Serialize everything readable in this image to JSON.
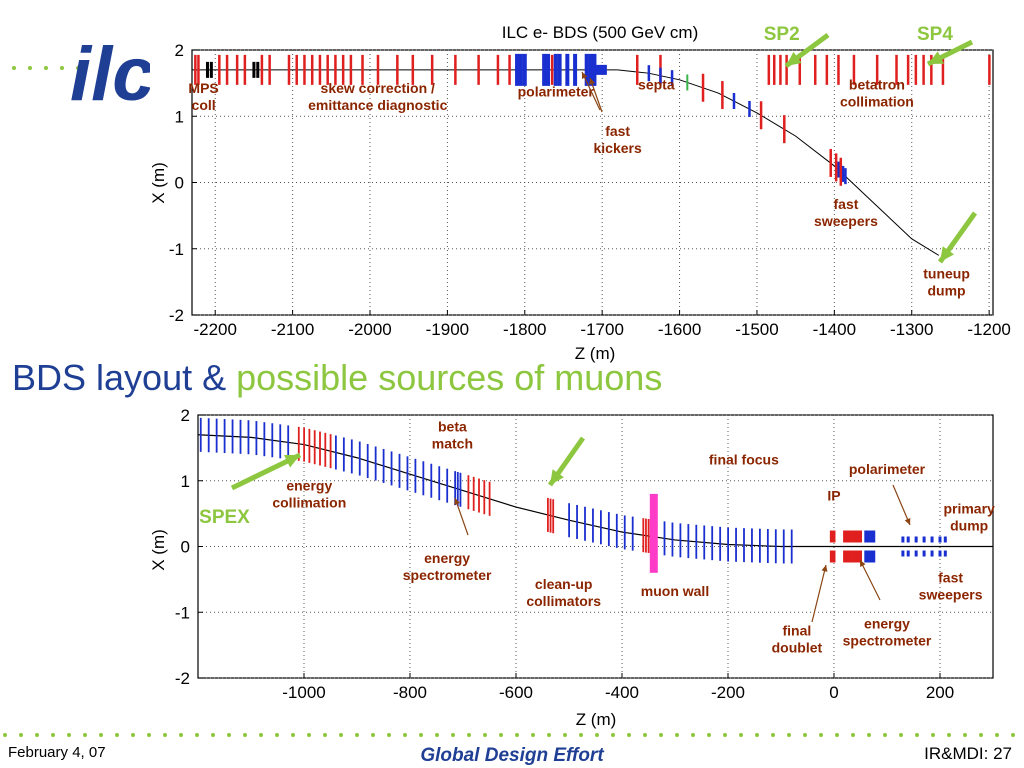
{
  "slide": {
    "logo_text": "ilc",
    "title_part1": "BDS layout & ",
    "title_part2": "possible sources of muons",
    "footer_left": "February 4, 07",
    "footer_center": "Global Design Effort",
    "footer_right": "IR&MDI: 27",
    "colors": {
      "title_blue": "#1f3f95",
      "accent_green": "#8dc63f",
      "arrow_brown": "#8b4513",
      "label_brown": "#8b2500"
    }
  },
  "chart_data": [
    {
      "type": "scatter",
      "title": "ILC e- BDS (500 GeV cm)",
      "xlabel": "Z (m)",
      "ylabel": "X (m)",
      "xlim": [
        -2230,
        -1195
      ],
      "ylim": [
        -2,
        2
      ],
      "xticks": [
        -2200,
        -2100,
        -2000,
        -1900,
        -1800,
        -1700,
        -1600,
        -1500,
        -1400,
        -1300,
        -1200
      ],
      "yticks": [
        -2,
        -1,
        0,
        1,
        2
      ],
      "grid": "dotted",
      "beamline": {
        "straight": [
          [
            -2230,
            1.7
          ],
          [
            -1680,
            1.7
          ]
        ],
        "branch": [
          [
            -1680,
            1.7
          ],
          [
            -1640,
            1.65
          ],
          [
            -1600,
            1.55
          ],
          [
            -1550,
            1.35
          ],
          [
            -1500,
            1.05
          ],
          [
            -1450,
            0.7
          ],
          [
            -1400,
            0.25
          ],
          [
            -1350,
            -0.3
          ],
          [
            -1300,
            -0.85
          ],
          [
            -1265,
            -1.1
          ]
        ]
      },
      "magnets": {
        "red_straight": [
          -2226,
          -2222,
          -2195,
          -2185,
          -2172,
          -2162,
          -2140,
          -2130,
          -2105,
          -2095,
          -2085,
          -2075,
          -2065,
          -2055,
          -2045,
          -2035,
          -2025,
          -2010,
          -1990,
          -1965,
          -1945,
          -1920,
          -1890,
          -1860,
          -1835,
          -1820,
          -1765,
          -1715,
          -1655,
          -1625,
          -1485,
          -1478,
          -1470,
          -1462,
          -1445,
          -1425,
          -1410,
          -1395,
          -1375,
          -1345,
          -1320,
          -1305,
          -1295,
          -1285,
          -1275,
          -1260,
          -1200
        ],
        "black_straight": [
          -2210,
          -2205,
          -2150,
          -2145
        ],
        "blue_straight": [
          -1810,
          -1805,
          -1800,
          -1775,
          -1770,
          -1760,
          -1755,
          -1745,
          -1735,
          -1720,
          -1715,
          -1710
        ],
        "blue_branch": [
          -1640,
          -1625,
          -1610,
          -1530,
          -1510,
          -1395,
          -1392,
          -1389,
          -1386
        ],
        "red_branch": [
          -1570,
          -1545,
          -1495,
          -1465,
          -1405,
          -1398,
          -1392
        ],
        "green_branch": [
          -1590
        ]
      },
      "annotations": [
        {
          "text": "MPS\ncoll",
          "x": -2215,
          "y": 1.2
        },
        {
          "text": "skew correction /\nemittance diagnostic",
          "x": -1990,
          "y": 1.2
        },
        {
          "text": "polarimeter",
          "x": -1760,
          "y": 1.15
        },
        {
          "text": "septa",
          "x": -1630,
          "y": 1.25
        },
        {
          "text": "fast\nkickers",
          "x": -1680,
          "y": 0.55
        },
        {
          "text": "betatron\ncollimation",
          "x": -1345,
          "y": 1.25
        },
        {
          "text": "fast\nsweepers",
          "x": -1385,
          "y": -0.55
        },
        {
          "text": "tuneup\ndump",
          "x": -1255,
          "y": -1.6
        },
        {
          "text": "SP2",
          "x": -1468,
          "y": 2.25
        },
        {
          "text": "SP4",
          "x": -1270,
          "y": 2.25
        }
      ]
    },
    {
      "type": "scatter",
      "title": "",
      "xlabel": "Z (m)",
      "ylabel": "X (m)",
      "xlim": [
        -1200,
        300
      ],
      "ylim": [
        -2,
        2
      ],
      "xticks": [
        -1000,
        -800,
        -600,
        -400,
        -200,
        0,
        200
      ],
      "yticks": [
        -2,
        -1,
        0,
        1,
        2
      ],
      "grid": "dotted",
      "beamline": [
        [
          -1200,
          1.7
        ],
        [
          -1100,
          1.66
        ],
        [
          -1000,
          1.55
        ],
        [
          -900,
          1.35
        ],
        [
          -800,
          1.1
        ],
        [
          -700,
          0.85
        ],
        [
          -600,
          0.6
        ],
        [
          -500,
          0.4
        ],
        [
          -400,
          0.22
        ],
        [
          -300,
          0.1
        ],
        [
          -200,
          0.03
        ],
        [
          -100,
          0.0
        ],
        [
          300,
          0.0
        ]
      ],
      "magnets": {
        "blue": [
          -1195,
          -1180,
          -1165,
          -1150,
          -1135,
          -1120,
          -1105,
          -1090,
          -1075,
          -1060,
          -1045,
          -1030,
          -940,
          -925,
          -910,
          -895,
          -880,
          -865,
          -850,
          -835,
          -820,
          -805,
          -790,
          -775,
          -760,
          -745,
          -730,
          -715,
          -710,
          -705,
          -500,
          -485,
          -470,
          -455,
          -440,
          -425,
          -410,
          -395,
          -380,
          -320,
          -305,
          -290,
          -275,
          -260,
          -245,
          -230,
          -215,
          -200,
          -185,
          -170,
          -155,
          -140,
          -125,
          -110,
          -95,
          -80
        ],
        "red": [
          -1010,
          -1000,
          -990,
          -980,
          -970,
          -960,
          -950,
          -690,
          -680,
          -670,
          -660,
          -650,
          -540,
          -535,
          -530,
          -360,
          -355,
          -350
        ],
        "ip_red": [
          -5,
          0,
          20,
          25,
          30,
          35,
          40,
          45,
          50
        ],
        "ip_blue": [
          60,
          65,
          70,
          75,
          130,
          140,
          155,
          170,
          185,
          200,
          210
        ]
      },
      "muon_wall": {
        "x": -340,
        "y_from": -0.4,
        "y_to": 0.8
      },
      "annotations": [
        {
          "text": "beta\nmatch",
          "x": -720,
          "y": 1.75
        },
        {
          "text": "energy\ncollimation",
          "x": -990,
          "y": 0.85
        },
        {
          "text": "SPEX",
          "x": -1150,
          "y": 0.6
        },
        {
          "text": "energy\nspectrometer",
          "x": -730,
          "y": -0.25
        },
        {
          "text": "clean-up\ncollimators",
          "x": -510,
          "y": -0.65
        },
        {
          "text": "muon wall",
          "x": -300,
          "y": -0.75
        },
        {
          "text": "final focus",
          "x": -170,
          "y": 1.25
        },
        {
          "text": "IP",
          "x": 0,
          "y": 0.7
        },
        {
          "text": "polarimeter",
          "x": 100,
          "y": 1.1
        },
        {
          "text": "primary\ndump",
          "x": 255,
          "y": 0.5
        },
        {
          "text": "fast\nsweepers",
          "x": 220,
          "y": -0.55
        },
        {
          "text": "energy\nspectrometer",
          "x": 100,
          "y": -1.25
        },
        {
          "text": "final\ndoublet",
          "x": -70,
          "y": -1.35
        }
      ]
    }
  ]
}
